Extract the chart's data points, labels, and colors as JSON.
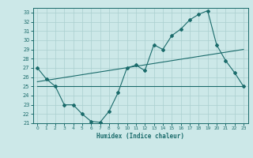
{
  "title": "",
  "xlabel": "Humidex (Indice chaleur)",
  "bg_color": "#cce8e8",
  "line_color": "#1a6b6b",
  "grid_color": "#aacfcf",
  "xlim": [
    -0.5,
    23.5
  ],
  "ylim": [
    21,
    33.5
  ],
  "xticks": [
    0,
    1,
    2,
    3,
    4,
    5,
    6,
    7,
    8,
    9,
    10,
    11,
    12,
    13,
    14,
    15,
    16,
    17,
    18,
    19,
    20,
    21,
    22,
    23
  ],
  "yticks": [
    21,
    22,
    23,
    24,
    25,
    26,
    27,
    28,
    29,
    30,
    31,
    32,
    33
  ],
  "series1_x": [
    0,
    1,
    2,
    3,
    4,
    5,
    6,
    7,
    8,
    9,
    10,
    11,
    12,
    13,
    14,
    15,
    16,
    17,
    18,
    19,
    20,
    21,
    22,
    23
  ],
  "series1_y": [
    27,
    25.8,
    25,
    23,
    23,
    22,
    21.2,
    21.1,
    22.3,
    24.3,
    27,
    27.3,
    26.7,
    29.5,
    29,
    30.5,
    31.2,
    32.2,
    32.8,
    33.2,
    29.5,
    27.8,
    26.5,
    25
  ],
  "series2_x": [
    0,
    23
  ],
  "series2_y": [
    25.5,
    29.0
  ],
  "series3_x": [
    0,
    23
  ],
  "series3_y": [
    25.0,
    25.0
  ]
}
